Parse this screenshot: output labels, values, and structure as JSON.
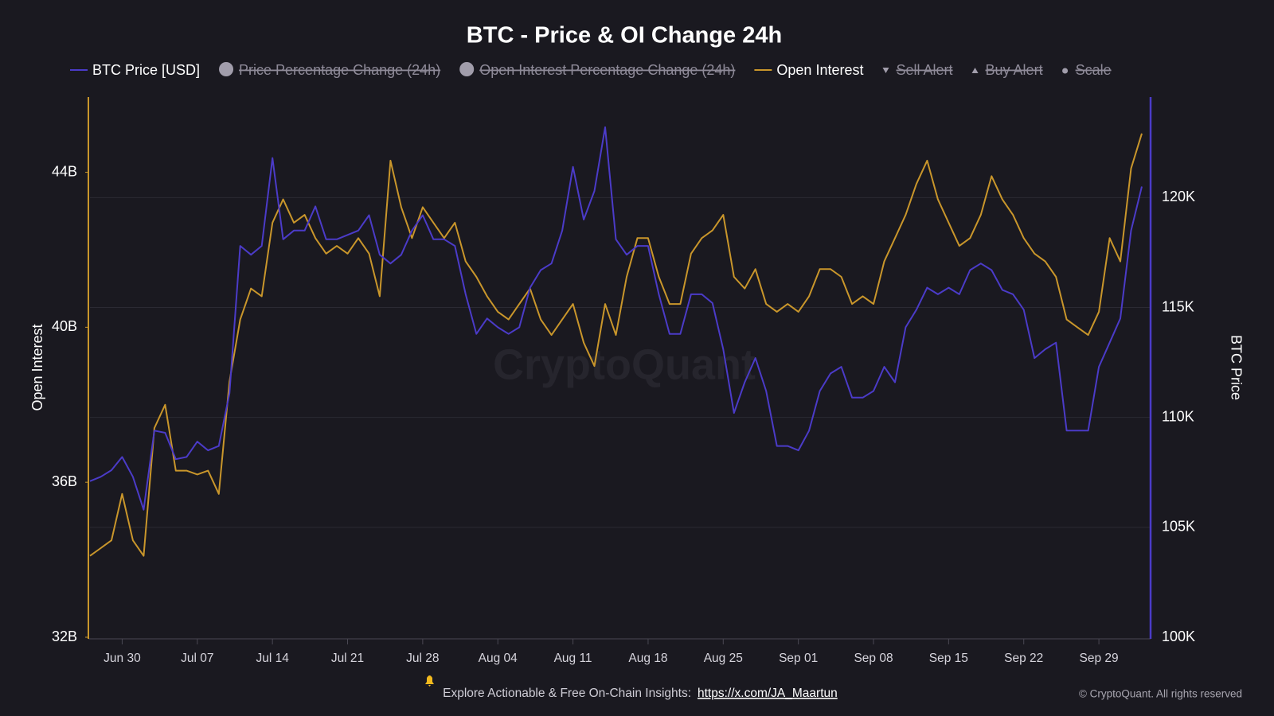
{
  "chart_data": {
    "type": "line",
    "title": "BTC - Price & OI Change 24h",
    "x": [
      "Jun 27",
      "Jun 28",
      "Jun 29",
      "Jun 30",
      "Jul 01",
      "Jul 02",
      "Jul 03",
      "Jul 04",
      "Jul 05",
      "Jul 06",
      "Jul 07",
      "Jul 08",
      "Jul 09",
      "Jul 10",
      "Jul 11",
      "Jul 12",
      "Jul 13",
      "Jul 14",
      "Jul 15",
      "Jul 16",
      "Jul 17",
      "Jul 18",
      "Jul 19",
      "Jul 20",
      "Jul 21",
      "Jul 22",
      "Jul 23",
      "Jul 24",
      "Jul 25",
      "Jul 26",
      "Jul 27",
      "Jul 28",
      "Jul 29",
      "Jul 30",
      "Jul 31",
      "Aug 01",
      "Aug 02",
      "Aug 03",
      "Aug 04",
      "Aug 05",
      "Aug 06",
      "Aug 07",
      "Aug 08",
      "Aug 09",
      "Aug 10",
      "Aug 11",
      "Aug 12",
      "Aug 13",
      "Aug 14",
      "Aug 15",
      "Aug 16",
      "Aug 17",
      "Aug 18",
      "Aug 19",
      "Aug 20",
      "Aug 21",
      "Aug 22",
      "Aug 23",
      "Aug 24",
      "Aug 25",
      "Aug 26",
      "Aug 27",
      "Aug 28",
      "Aug 29",
      "Aug 30",
      "Aug 31",
      "Sep 01",
      "Sep 02",
      "Sep 03",
      "Sep 04",
      "Sep 05",
      "Sep 06",
      "Sep 07",
      "Sep 08",
      "Sep 09",
      "Sep 10",
      "Sep 11",
      "Sep 12",
      "Sep 13",
      "Sep 14",
      "Sep 15",
      "Sep 16",
      "Sep 17",
      "Sep 18",
      "Sep 19",
      "Sep 20",
      "Sep 21",
      "Sep 22",
      "Sep 23",
      "Sep 24",
      "Sep 25",
      "Sep 26",
      "Sep 27",
      "Sep 28",
      "Sep 29",
      "Sep 30",
      "Oct 01",
      "Oct 02",
      "Oct 03"
    ],
    "xticks": [
      "Jun 30",
      "Jul 07",
      "Jul 14",
      "Jul 21",
      "Jul 28",
      "Aug 04",
      "Aug 11",
      "Aug 18",
      "Aug 25",
      "Sep 01",
      "Sep 08",
      "Sep 15",
      "Sep 22",
      "Sep 29"
    ],
    "ylabel": "Open Interest",
    "y2label": "BTC Price",
    "ylim": [
      32,
      45.9
    ],
    "yticks": [
      {
        "value": 32,
        "label": "32B"
      },
      {
        "value": 36,
        "label": "36B"
      },
      {
        "value": 40,
        "label": "40B"
      },
      {
        "value": 44,
        "label": "44B"
      }
    ],
    "y2lim": [
      100,
      124.5
    ],
    "y2ticks": [
      {
        "value": 100,
        "label": "100K"
      },
      {
        "value": 105,
        "label": "105K"
      },
      {
        "value": 110,
        "label": "110K"
      },
      {
        "value": 115,
        "label": "115K"
      },
      {
        "value": 120,
        "label": "120K"
      }
    ],
    "grid": true,
    "series": [
      {
        "name": "BTC Price [USD]",
        "color": "#4b3bc8",
        "marker": "line",
        "axis": "y2",
        "values": [
          107.1,
          107.3,
          107.6,
          108.2,
          107.3,
          105.8,
          109.4,
          109.3,
          108.1,
          108.2,
          108.9,
          108.5,
          108.7,
          111.1,
          117.8,
          117.4,
          117.8,
          121.8,
          118.1,
          118.5,
          118.5,
          119.6,
          118.1,
          118.1,
          118.3,
          118.5,
          119.2,
          117.4,
          117.0,
          117.4,
          118.5,
          119.2,
          118.1,
          118.1,
          117.8,
          115.6,
          113.8,
          114.5,
          114.1,
          113.8,
          114.1,
          115.9,
          116.7,
          117.0,
          118.5,
          121.4,
          119.0,
          120.3,
          123.2,
          118.1,
          117.4,
          117.8,
          117.8,
          115.6,
          113.8,
          113.8,
          115.6,
          115.6,
          115.2,
          113.1,
          110.2,
          111.6,
          112.7,
          111.2,
          108.7,
          108.7,
          108.5,
          109.4,
          111.2,
          112.0,
          112.3,
          110.9,
          110.9,
          111.2,
          112.3,
          111.6,
          114.1,
          114.9,
          115.9,
          115.6,
          115.9,
          115.6,
          116.7,
          117.0,
          116.7,
          115.8,
          115.6,
          114.9,
          112.7,
          113.1,
          113.4,
          109.4,
          109.4,
          109.4,
          112.3,
          113.4,
          114.5,
          118.5,
          120.5
        ]
      },
      {
        "name": "Price Percentage Change (24h)",
        "color": "#a19dab",
        "marker": "circle",
        "hidden": true
      },
      {
        "name": "Open Interest Percentage Change (24h)",
        "color": "#a19dab",
        "marker": "circle",
        "hidden": true
      },
      {
        "name": "Open Interest",
        "color": "#c9962b",
        "marker": "line",
        "axis": "y",
        "values": [
          34.1,
          34.3,
          34.5,
          35.7,
          34.5,
          34.1,
          37.4,
          38.0,
          36.3,
          36.3,
          36.2,
          36.3,
          35.7,
          38.6,
          40.2,
          41.0,
          40.8,
          42.7,
          43.3,
          42.7,
          42.9,
          42.3,
          41.9,
          42.1,
          41.9,
          42.3,
          41.9,
          40.8,
          44.3,
          43.1,
          42.3,
          43.1,
          42.7,
          42.3,
          42.7,
          41.7,
          41.3,
          40.8,
          40.4,
          40.2,
          40.6,
          41.0,
          40.2,
          39.8,
          40.2,
          40.6,
          39.6,
          39.0,
          40.6,
          39.8,
          41.3,
          42.3,
          42.3,
          41.3,
          40.6,
          40.6,
          41.9,
          42.3,
          42.5,
          42.9,
          41.3,
          41.0,
          41.5,
          40.6,
          40.4,
          40.6,
          40.4,
          40.8,
          41.5,
          41.5,
          41.3,
          40.6,
          40.8,
          40.6,
          41.7,
          42.3,
          42.9,
          43.7,
          44.3,
          43.3,
          42.7,
          42.1,
          42.3,
          42.9,
          43.9,
          43.3,
          42.9,
          42.3,
          41.9,
          41.7,
          41.3,
          40.2,
          40.0,
          39.8,
          40.4,
          42.3,
          41.7,
          44.1,
          45.0
        ]
      },
      {
        "name": "Sell Alert",
        "color": "#a19dab",
        "marker": "triangle-down",
        "hidden": true
      },
      {
        "name": "Buy Alert",
        "color": "#a19dab",
        "marker": "triangle-up",
        "hidden": true
      },
      {
        "name": "Scale",
        "color": "#a19dab",
        "marker": "dot",
        "hidden": true
      }
    ],
    "watermark": "CryptoQuant",
    "footer": {
      "text": "Explore Actionable & Free On-Chain Insights:",
      "link": "https://x.com/JA_Maartun"
    },
    "copyright": "© CryptoQuant. All rights reserved"
  }
}
